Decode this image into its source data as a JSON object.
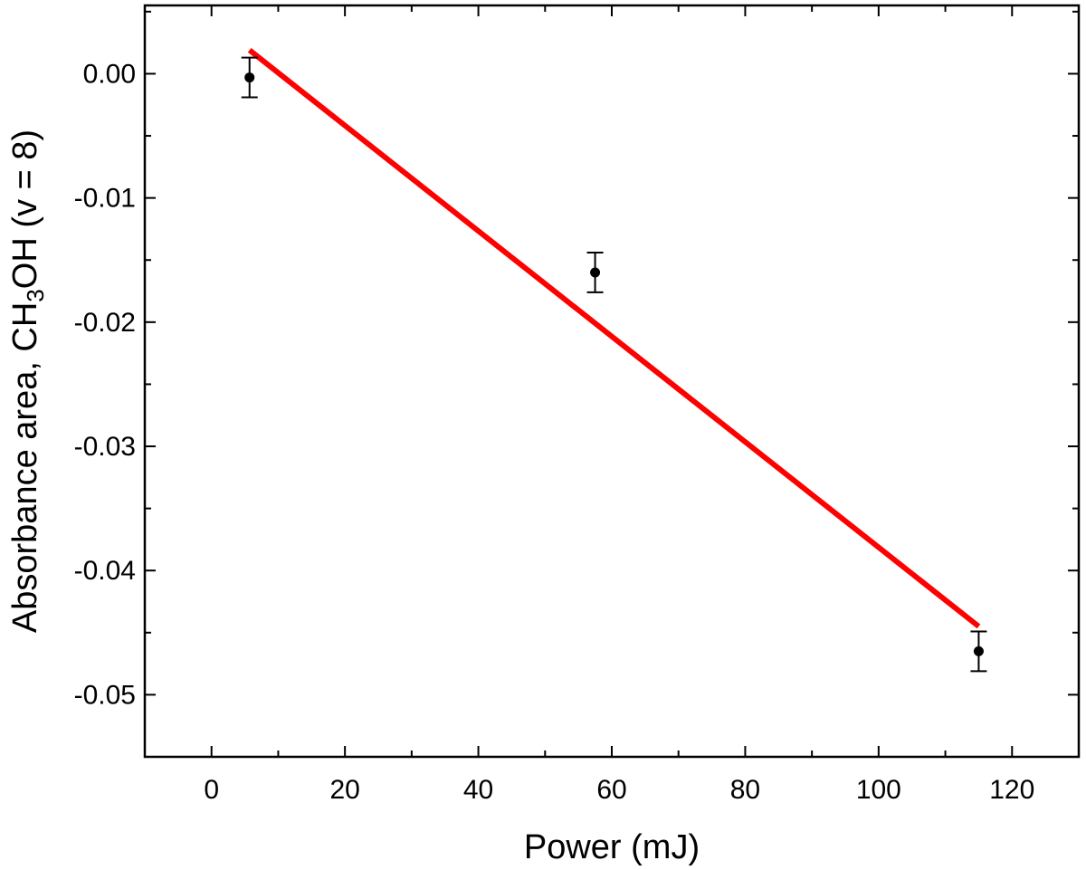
{
  "chart_data": {
    "type": "scatter",
    "xlabel": "Power (mJ)",
    "ylabel": {
      "prefix": "Absorbance area, CH",
      "subscript": "3",
      "suffix": "OH (v = 8)"
    },
    "xlim": [
      -10,
      130
    ],
    "ylim": [
      -0.055,
      0.0055
    ],
    "x_ticks": [
      0,
      20,
      40,
      60,
      80,
      100,
      120
    ],
    "x_tick_labels": [
      "0",
      "20",
      "40",
      "60",
      "80",
      "100",
      "120"
    ],
    "y_ticks": [
      0.0,
      -0.01,
      -0.02,
      -0.03,
      -0.04,
      -0.05
    ],
    "y_tick_labels": [
      "0.00",
      "-0.01",
      "-0.02",
      "-0.03",
      "-0.04",
      "-0.05"
    ],
    "grid": false,
    "series": [
      {
        "kind": "points-with-error",
        "color": "#000000",
        "x": [
          5.7,
          57.5,
          115.0
        ],
        "y": [
          -0.0003,
          -0.016,
          -0.0465
        ],
        "yerr": [
          0.0016,
          0.0016,
          0.0016
        ]
      },
      {
        "kind": "fit-line",
        "color": "#ff0000",
        "x": [
          5.7,
          115.0
        ],
        "y": [
          0.0019,
          -0.0445
        ]
      }
    ]
  }
}
